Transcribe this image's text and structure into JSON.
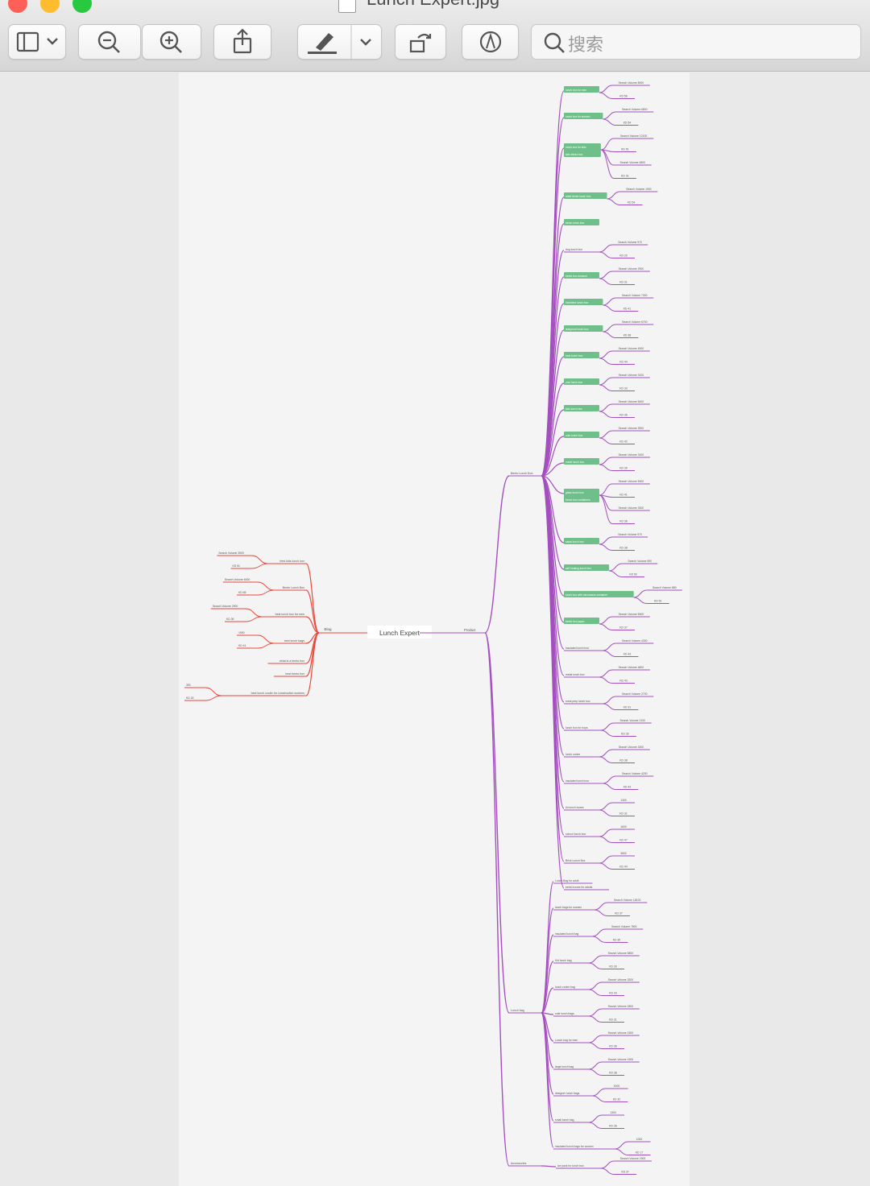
{
  "window": {
    "title": "Lunch Expert.jpg"
  },
  "toolbar": {
    "search_placeholder": "搜索"
  },
  "mindmap": {
    "center": "Lunch Expert",
    "blog": {
      "label": "Blog",
      "items": [
        {
          "label": "best kids lunch box",
          "leaves": [
            "Search Volume 3500",
            "KD 51"
          ]
        },
        {
          "label": "Bento Lunch Box",
          "leaves": [
            "Search Volume 6000",
            "KD 65"
          ]
        },
        {
          "label": "best lunch box for men",
          "leaves": [
            "Search Volume 2900",
            "KD 36"
          ]
        },
        {
          "label": "best lunch bags",
          "leaves": [
            "1900",
            "KD 41"
          ]
        },
        {
          "label": "what is a bento box",
          "leaves": []
        },
        {
          "label": "best bento box",
          "leaves": []
        },
        {
          "label": "best lunch cooler for construction workers",
          "leaves": [
            "390",
            "KD 18"
          ]
        }
      ]
    },
    "product": {
      "label": "Product",
      "groups": [
        {
          "label": "Bento Lunch Box",
          "items": [
            {
              "label": "lunch box for men",
              "hl": true,
              "leaves": [
                "Search Volume 8000",
                "KD 58"
              ]
            },
            {
              "label": "lunch box for women",
              "hl": true,
              "leaves": [
                "Search Volume 6800",
                "KD 54"
              ]
            },
            {
              "label": "lunch box for kids",
              "hl": true,
              "label2": "kids bento box",
              "leaves": [
                "Search Volume 12100",
                "KD 51",
                "Search Volume 4800",
                "KD 31"
              ]
            },
            {
              "label": "adult bento lunch box",
              "hl": true,
              "leaves": [
                "Search Volume 1900",
                "KD 54"
              ]
            },
            {
              "label": "bento lunch box",
              "hl": true,
              "leaves": []
            },
            {
              "label": "dog lunch box",
              "hl": false,
              "leaves": [
                "Search Volume 970",
                "KD 26"
              ]
            },
            {
              "label": "bento box amazon",
              "hl": true,
              "leaves": [
                "Search Volume 2900",
                "KD 31"
              ]
            },
            {
              "label": "insulated lunch box",
              "hl": true,
              "leaves": [
                "Search Volume 7300",
                "KD 41"
              ]
            },
            {
              "label": "leakproof lunch box",
              "hl": true,
              "leaves": [
                "Search Volume 6700",
                "KD 38"
              ]
            },
            {
              "label": "best lunch box",
              "hl": true,
              "leaves": [
                "Search Volume 4900",
                "KD 44"
              ]
            },
            {
              "label": "cool lunch box",
              "hl": true,
              "leaves": [
                "Search Volume 3100",
                "KD 33"
              ]
            },
            {
              "label": "kids lunch box",
              "hl": true,
              "leaves": [
                "Search Volume 5400",
                "KD 36"
              ]
            },
            {
              "label": "cute lunch box",
              "hl": true,
              "leaves": [
                "Search Volume 3900",
                "KD 42"
              ]
            },
            {
              "label": "metal lunch box",
              "hl": true,
              "leaves": [
                "Search Volume 3100",
                "KD 39"
              ]
            },
            {
              "label": "glass lunch box",
              "hl": true,
              "label2": "bento box containers",
              "leaves": [
                "Search Volume 5300",
                "KD 41",
                "Search Volume 3300",
                "KD 38"
              ]
            },
            {
              "label": "salad lunch box",
              "hl": true,
              "leaves": [
                "Search Volume 970",
                "KD 38"
              ]
            },
            {
              "label": "self heating lunch box",
              "hl": true,
              "leaves": [
                "Search Volume 590",
                "KD 50"
              ]
            },
            {
              "label": "lunch box with microwave container",
              "hl": true,
              "leaves": [
                "Search Volume 880",
                "KD 51"
              ]
            },
            {
              "label": "bento box japan",
              "hl": true,
              "leaves": [
                "Search Volume 6900",
                "KD 37"
              ]
            },
            {
              "label": "insulated lunch box",
              "hl": false,
              "leaves": [
                "Search Volume 4300",
                "KD 43"
              ]
            },
            {
              "label": "metal lunch box",
              "hl": false,
              "leaves": [
                "Search Volume 4800",
                "KD 43"
              ]
            },
            {
              "label": "meal prep lunch box",
              "hl": false,
              "leaves": [
                "Search Volume 2700",
                "KD 31"
              ]
            },
            {
              "label": "lunch box for boys",
              "hl": false,
              "leaves": [
                "Search Volume 2100",
                "KD 30"
              ]
            },
            {
              "label": "lunch cooler",
              "hl": false,
              "leaves": [
                "Search Volume 3300",
                "KD 38"
              ]
            },
            {
              "label": "insulated lunch box",
              "hl": false,
              "leaves": [
                "Search Volume 4200",
                "KD 43"
              ]
            },
            {
              "label": "tin lunch boxes",
              "hl": false,
              "leaves": [
                "1300",
                "KD 31"
              ]
            },
            {
              "label": "school lunch box",
              "hl": false,
              "leaves": [
                "1600",
                "KD 47"
              ]
            },
            {
              "label": "Brick Lunch Box",
              "hl": false,
              "leaves": [
                "3600",
                "KD 44"
              ]
            },
            {
              "label": "bento boxes for adults",
              "hl": false,
              "leaves": []
            }
          ]
        },
        {
          "label": "Lunch bag",
          "items": [
            {
              "label": "Lunch Bag for adult",
              "leaves": []
            },
            {
              "label": "lunch bags for women",
              "leaves": [
                "Search Volume 18100",
                "KD 37"
              ]
            },
            {
              "label": "insulated lunch bag",
              "leaves": [
                "Search Volume 7800",
                "KD 35"
              ]
            },
            {
              "label": "Kid lunch bag",
              "leaves": [
                "Search Volume 5800",
                "KD 30"
              ]
            },
            {
              "label": "lunch cooler bag",
              "leaves": [
                "Search Volume 3200",
                "KD 33"
              ]
            },
            {
              "label": "cute lunch bags",
              "leaves": [
                "Search Volume 2800",
                "KD 31"
              ]
            },
            {
              "label": "Lunch bag for men",
              "leaves": [
                "Search Volume 1900",
                "KD 36"
              ]
            },
            {
              "label": "large lunch bag",
              "leaves": [
                "Search Volume 1900",
                "KD 38"
              ]
            },
            {
              "label": "designer lunch bags",
              "leaves": [
                "1900",
                "KD 32"
              ]
            },
            {
              "label": "small lunch bag",
              "leaves": [
                "1300",
                "KD 36"
              ]
            },
            {
              "label": "insulated lunch bags for women",
              "leaves": [
                "1000",
                "KD 17"
              ]
            }
          ]
        },
        {
          "label": "Accessories",
          "items": [
            {
              "label": "ice pack for lunch box",
              "leaves": [
                "Search Volume 2900",
                "KD 37"
              ]
            }
          ]
        }
      ]
    }
  },
  "colors": {
    "blog": "#e8493c",
    "product": "#a44fbf",
    "highlight": "#6fbf8a"
  }
}
